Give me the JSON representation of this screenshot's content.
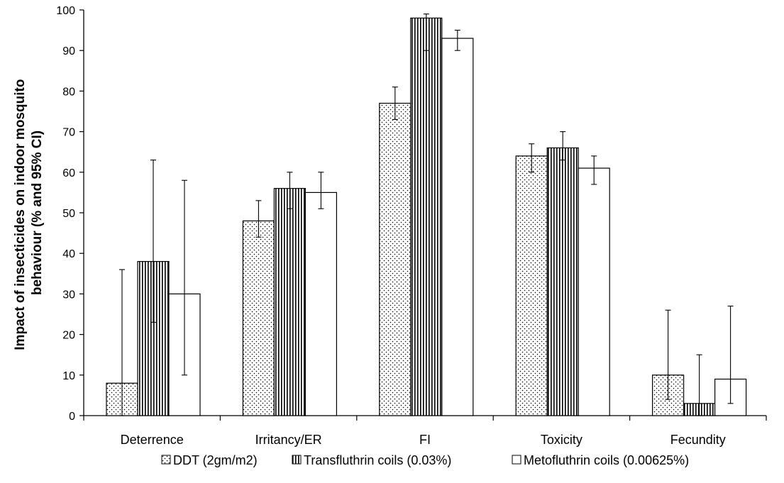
{
  "chart_data": {
    "type": "bar",
    "title": "",
    "xlabel": "",
    "ylabel": "Impact of insecticides on indoor mosquito behaviour (% and 95% CI)",
    "ylabel_lines": [
      "Impact of insecticides on indoor mosquito",
      "behaviour (% and 95% CI)"
    ],
    "ylim": [
      0,
      100
    ],
    "yticks": [
      0,
      10,
      20,
      30,
      40,
      50,
      60,
      70,
      80,
      90,
      100
    ],
    "grid": false,
    "legend_position": "bottom",
    "categories": [
      "Deterrence",
      "Irritancy/ER",
      "FI",
      "Toxicity",
      "Fecundity"
    ],
    "series": [
      {
        "name": "DDT (2gm/m2)",
        "pattern": "dots",
        "values": [
          8,
          48,
          77,
          64,
          10
        ],
        "ci_low": [
          0,
          44,
          73,
          60,
          4
        ],
        "ci_high": [
          36,
          53,
          81,
          67,
          26
        ]
      },
      {
        "name": "Transfluthrin coils (0.03%)",
        "pattern": "vertical-lines",
        "values": [
          38,
          56,
          98,
          66,
          3
        ],
        "ci_low": [
          23,
          51,
          90,
          63,
          0
        ],
        "ci_high": [
          63,
          60,
          99,
          70,
          15
        ]
      },
      {
        "name": "Metofluthrin coils (0.00625%)",
        "pattern": "plain",
        "values": [
          30,
          55,
          93,
          61,
          9
        ],
        "ci_low": [
          10,
          51,
          90,
          57,
          3
        ],
        "ci_high": [
          58,
          60,
          95,
          64,
          27
        ]
      }
    ],
    "colors": {
      "fill": "#ffffff",
      "stroke": "#000000",
      "pattern": "#000000"
    }
  }
}
